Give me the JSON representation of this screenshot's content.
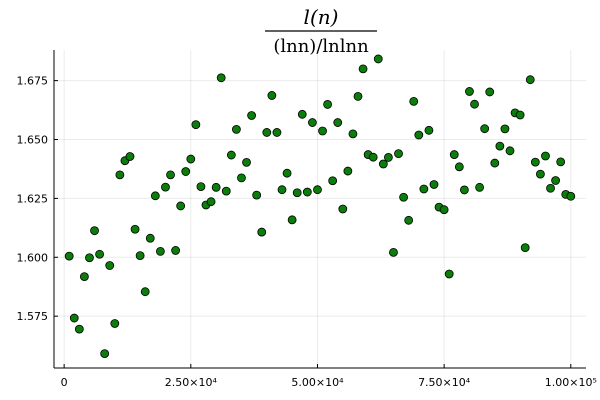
{
  "chart_data": {
    "type": "scatter",
    "title": {
      "numerator": "l(n)",
      "denominator": "(lnn)/lnlnn"
    },
    "xlabel": "",
    "ylabel": "",
    "xlim": [
      -2000,
      103000
    ],
    "ylim": [
      1.553,
      1.688
    ],
    "x_ticks": [
      {
        "value": 0,
        "label": "0"
      },
      {
        "value": 25000,
        "label": "2.50×10⁴"
      },
      {
        "value": 50000,
        "label": "5.00×10⁴"
      },
      {
        "value": 75000,
        "label": "7.50×10⁴"
      },
      {
        "value": 100000,
        "label": "1.00×10⁵"
      }
    ],
    "y_ticks": [
      {
        "value": 1.575,
        "label": "1.575"
      },
      {
        "value": 1.6,
        "label": "1.600"
      },
      {
        "value": 1.625,
        "label": "1.625"
      },
      {
        "value": 1.65,
        "label": "1.650"
      },
      {
        "value": 1.675,
        "label": "1.675"
      }
    ],
    "grid": true,
    "legend": "none",
    "marker_color": "#0a7d0a",
    "marker_edge": "#000000",
    "series": [
      {
        "x": [
          1000,
          2000,
          3000,
          4000,
          5000,
          6000,
          7000,
          8000,
          9000,
          10000,
          11000,
          12000,
          13000,
          14000,
          15000,
          16000,
          17000,
          18000,
          19000,
          20000,
          21000,
          22000,
          23000,
          24000,
          25000,
          26000,
          27000,
          28000,
          29000,
          30000,
          31000,
          32000,
          33000,
          34000,
          35000,
          36000,
          37000,
          38000,
          39000,
          40000,
          41000,
          42000,
          43000,
          44000,
          45000,
          46000,
          47000,
          48000,
          49000,
          50000,
          51000,
          52000,
          53000,
          54000,
          55000,
          56000,
          57000,
          58000,
          59000,
          60000,
          61000,
          62000,
          63000,
          64000,
          65000,
          66000,
          67000,
          68000,
          69000,
          70000,
          71000,
          72000,
          73000,
          74000,
          75000,
          76000,
          77000,
          78000,
          79000,
          80000,
          81000,
          82000,
          83000,
          84000,
          85000,
          86000,
          87000,
          88000,
          89000,
          90000,
          91000,
          92000,
          93000,
          94000,
          95000,
          96000,
          97000,
          98000,
          99000,
          100000
        ],
        "y": [
          1.6005,
          1.5742,
          1.5695,
          1.5918,
          1.5998,
          1.6113,
          1.6013,
          1.5591,
          1.5965,
          1.5719,
          1.635,
          1.641,
          1.6428,
          1.6119,
          1.6007,
          1.5854,
          1.6081,
          1.6261,
          1.6025,
          1.6298,
          1.635,
          1.6029,
          1.6218,
          1.6364,
          1.6417,
          1.6563,
          1.63,
          1.6222,
          1.6236,
          1.6297,
          1.6762,
          1.6281,
          1.6434,
          1.6543,
          1.6337,
          1.6403,
          1.6602,
          1.6264,
          1.6107,
          1.653,
          1.6687,
          1.653,
          1.6287,
          1.6357,
          1.6159,
          1.6274,
          1.6607,
          1.6277,
          1.6572,
          1.6287,
          1.6536,
          1.6649,
          1.6325,
          1.6572,
          1.6205,
          1.6366,
          1.6524,
          1.6683,
          1.68,
          1.6436,
          1.6425,
          1.6842,
          1.6396,
          1.6424,
          1.6021,
          1.644,
          1.6255,
          1.6157,
          1.6662,
          1.6519,
          1.629,
          1.6539,
          1.6309,
          1.6213,
          1.6202,
          1.5929,
          1.6436,
          1.6384,
          1.6286,
          1.6704,
          1.665,
          1.6297,
          1.6546,
          1.6702,
          1.64,
          1.6472,
          1.6545,
          1.6452,
          1.6613,
          1.6604,
          1.6041,
          1.6754,
          1.6404,
          1.6353,
          1.643,
          1.6293,
          1.6326,
          1.6405,
          1.6267,
          1.6259
        ]
      }
    ]
  }
}
